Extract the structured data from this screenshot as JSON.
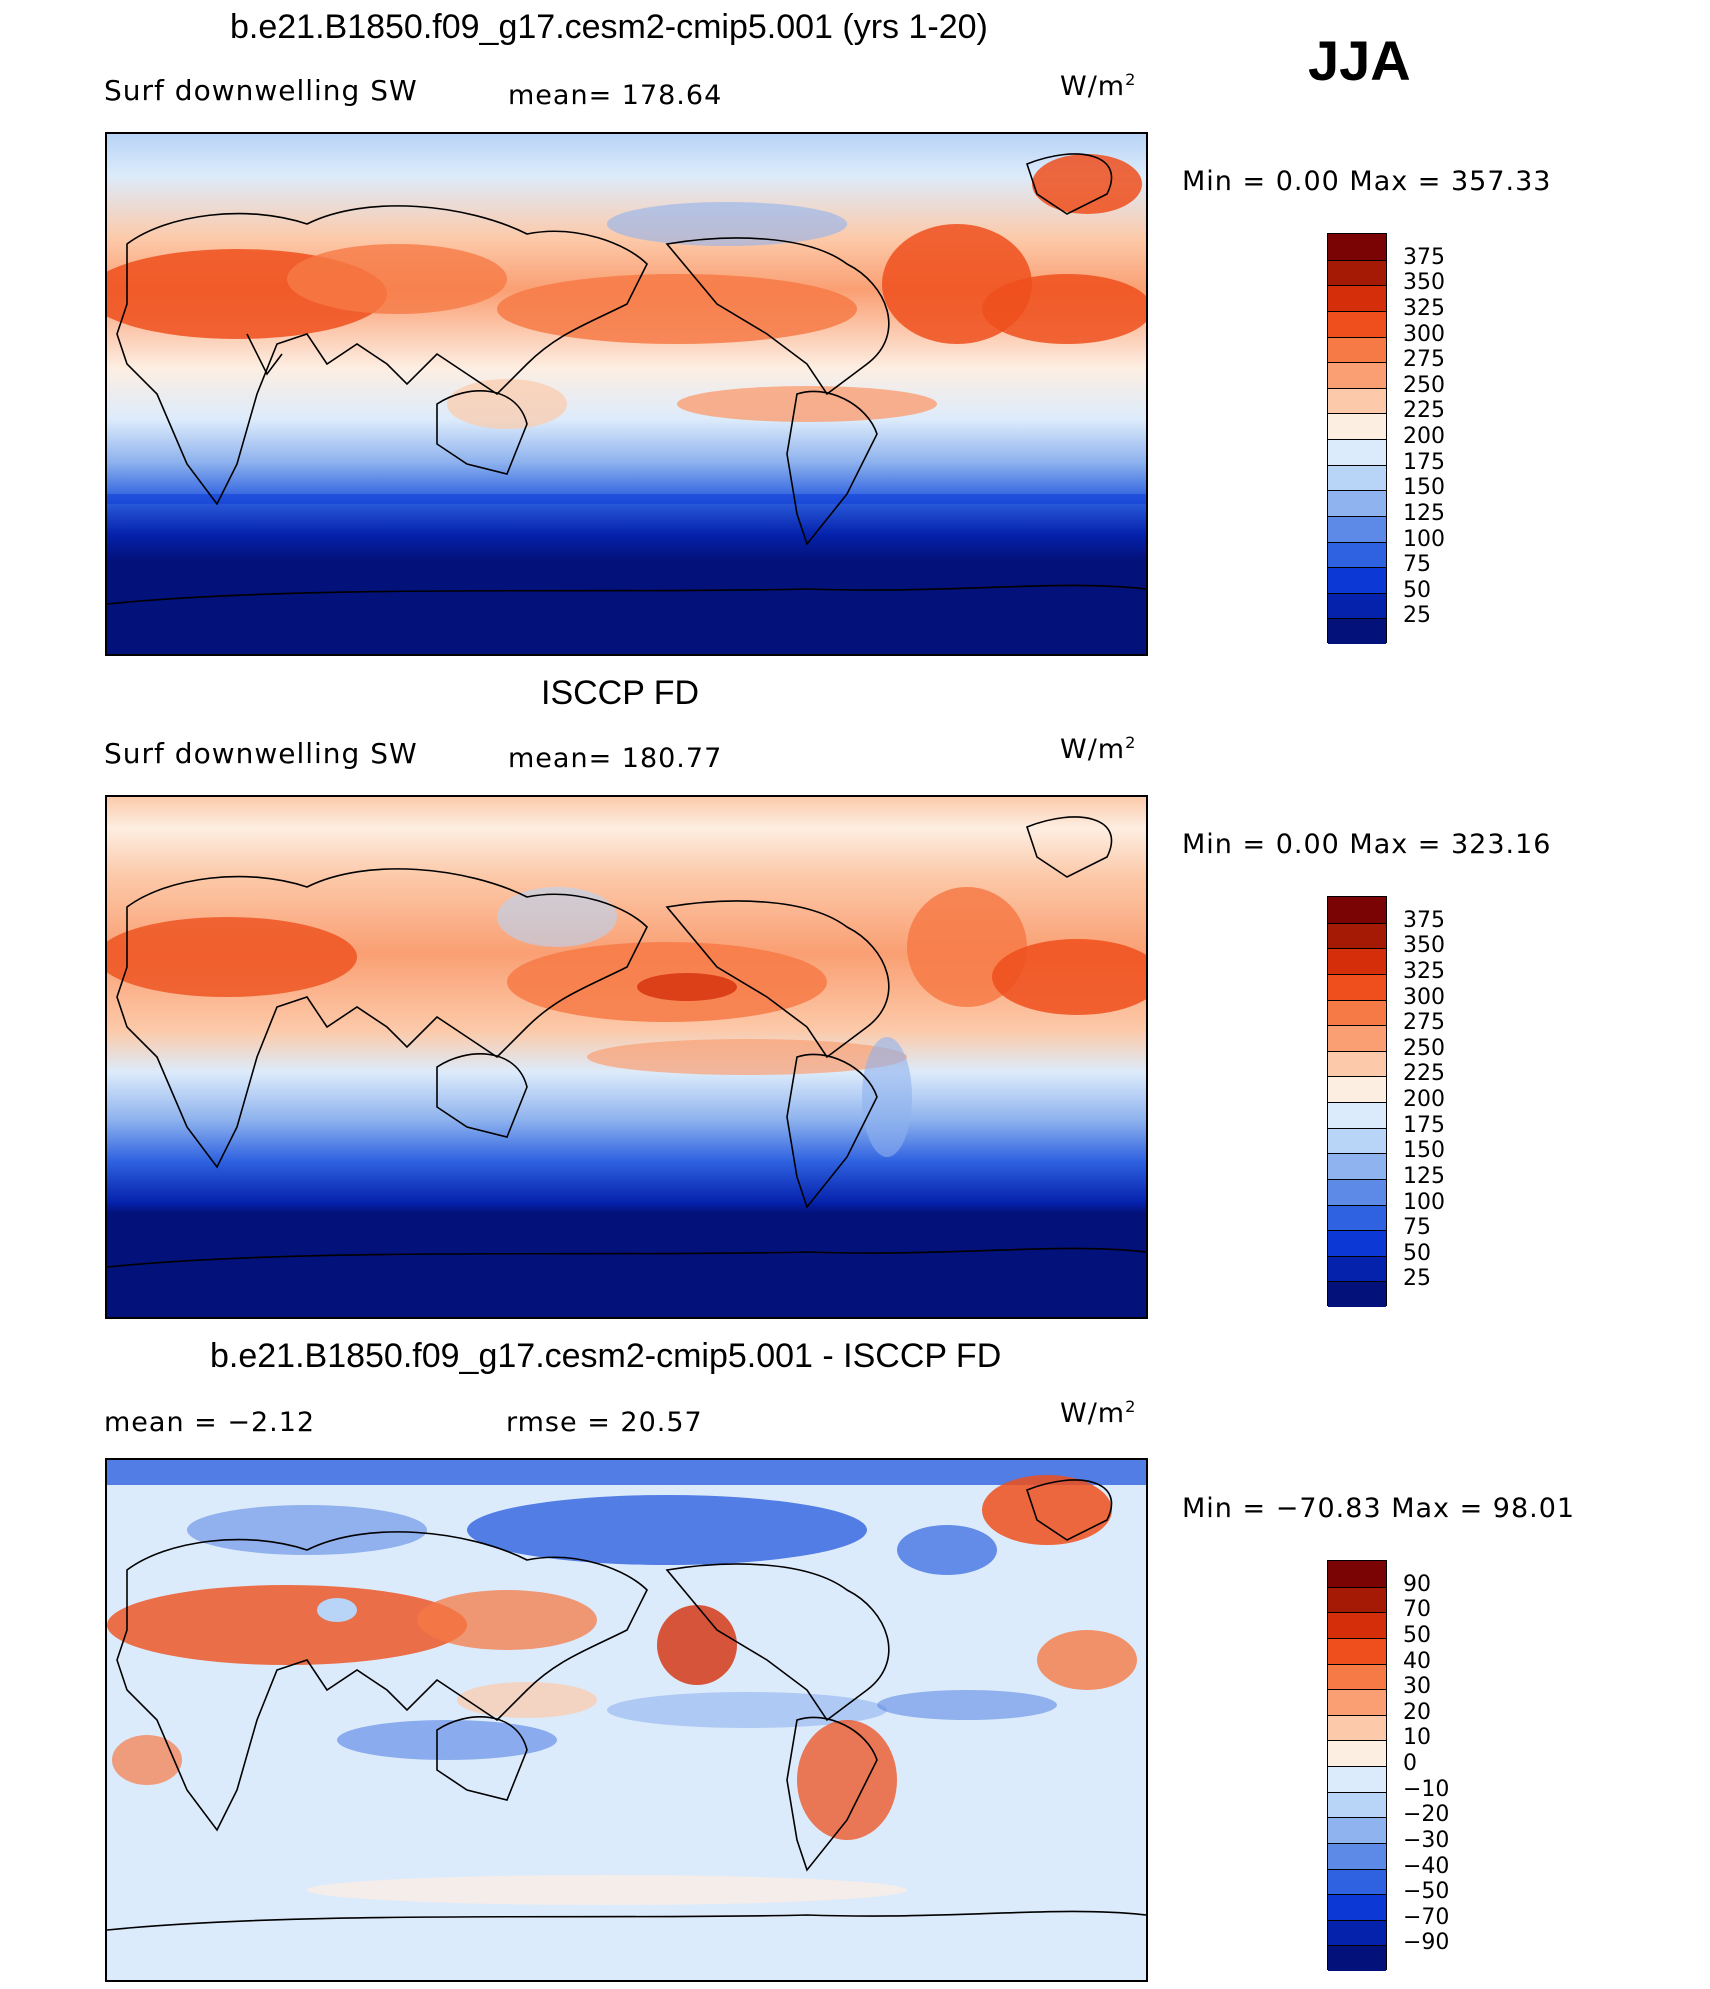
{
  "season": "JJA",
  "panels": [
    {
      "id": "model",
      "title": "b.e21.B1850.f09_g17.cesm2-cmip5.001 (yrs 1-20)",
      "left_label": "Surf  downwelling  SW",
      "mid_label": "mean=  178.64",
      "units": "W/m",
      "units_sup": "2",
      "minmax": "Min  =      0.00  Max  =  357.33",
      "colorbar": {
        "labels": [
          "375",
          "350",
          "325",
          "300",
          "275",
          "250",
          "225",
          "200",
          "175",
          "150",
          "125",
          "100",
          "75",
          "50",
          "25"
        ],
        "colors": [
          "#7a0403",
          "#a51a04",
          "#d42f0a",
          "#ee4f1c",
          "#f67a46",
          "#fa9f73",
          "#fccaaa",
          "#fdeee2",
          "#dcebfb",
          "#b8d4f6",
          "#8fb3ee",
          "#5d8ae6",
          "#2f62e0",
          "#0c38d6",
          "#0522ac",
          "#03117a"
        ]
      }
    },
    {
      "id": "obs",
      "title": "ISCCP FD",
      "left_label": "Surf  downwelling  SW",
      "mid_label": "mean=  180.77",
      "units": "W/m",
      "units_sup": "2",
      "minmax": "Min  =      0.00  Max  =  323.16",
      "colorbar": {
        "labels": [
          "375",
          "350",
          "325",
          "300",
          "275",
          "250",
          "225",
          "200",
          "175",
          "150",
          "125",
          "100",
          "75",
          "50",
          "25"
        ],
        "colors": [
          "#7a0403",
          "#a51a04",
          "#d42f0a",
          "#ee4f1c",
          "#f67a46",
          "#fa9f73",
          "#fccaaa",
          "#fdeee2",
          "#dcebfb",
          "#b8d4f6",
          "#8fb3ee",
          "#5d8ae6",
          "#2f62e0",
          "#0c38d6",
          "#0522ac",
          "#03117a"
        ]
      }
    },
    {
      "id": "diff",
      "title": "b.e21.B1850.f09_g17.cesm2-cmip5.001 - ISCCP FD",
      "left_label": "mean  =    −2.12",
      "mid_label": "rmse  =    20.57",
      "units": "W/m",
      "units_sup": "2",
      "minmax": "Min  = −70.83  Max  =    98.01",
      "colorbar": {
        "labels": [
          "90",
          "70",
          "50",
          "40",
          "30",
          "20",
          "10",
          "0",
          "−10",
          "−20",
          "−30",
          "−40",
          "−50",
          "−70",
          "−90"
        ],
        "colors": [
          "#7a0403",
          "#a51a04",
          "#d42f0a",
          "#ee4f1c",
          "#f67a46",
          "#fa9f73",
          "#fccaaa",
          "#fdeee2",
          "#dcebfb",
          "#b8d4f6",
          "#8fb3ee",
          "#5d8ae6",
          "#2f62e0",
          "#0c38d6",
          "#0522ac",
          "#03117a"
        ]
      }
    }
  ]
}
